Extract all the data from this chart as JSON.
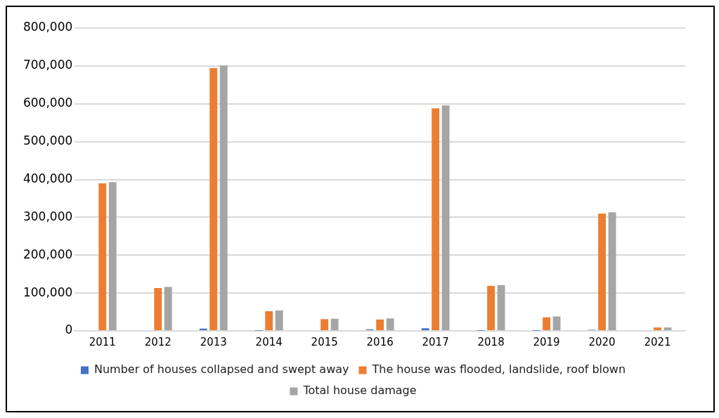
{
  "chart_data": {
    "type": "bar",
    "categories": [
      "2011",
      "2012",
      "2013",
      "2014",
      "2015",
      "2016",
      "2017",
      "2018",
      "2019",
      "2020",
      "2021"
    ],
    "series": [
      {
        "name": "Number of houses collapsed and swept away",
        "color": "#4472c4",
        "values": [
          0,
          2000,
          6000,
          500,
          0,
          4000,
          7000,
          500,
          500,
          3000,
          0
        ]
      },
      {
        "name": "The house was flooded, landslide, roof blown",
        "color": "#ed7d31",
        "values": [
          390000,
          113000,
          694000,
          52000,
          31000,
          30000,
          588000,
          119000,
          36000,
          310000,
          9000
        ]
      },
      {
        "name": "Total house damage",
        "color": "#a5a5a5",
        "values": [
          393000,
          116000,
          701000,
          54000,
          32000,
          33000,
          596000,
          121000,
          38000,
          313000,
          9000
        ]
      }
    ],
    "ylim": [
      0,
      800000
    ],
    "yticks": [
      {
        "value": 0,
        "label": "0"
      },
      {
        "value": 100000,
        "label": "100,000"
      },
      {
        "value": 200000,
        "label": "200,000"
      },
      {
        "value": 300000,
        "label": "300,000"
      },
      {
        "value": 400000,
        "label": "400,000"
      },
      {
        "value": 500000,
        "label": "500,000"
      },
      {
        "value": 600000,
        "label": "600,000"
      },
      {
        "value": 700000,
        "label": "700,000"
      },
      {
        "value": 800000,
        "label": "800,000"
      }
    ],
    "grid": "y",
    "legend": "bottom"
  }
}
